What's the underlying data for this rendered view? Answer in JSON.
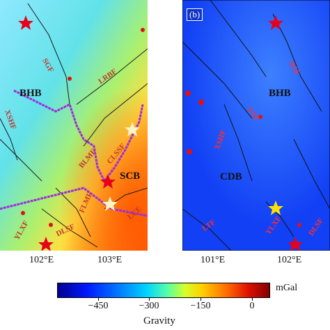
{
  "panel_a": {
    "labels": {
      "bhb": "BHB",
      "scb": "SCB",
      "sgf": "SGF",
      "lrbf": "LRBF",
      "blmf": "BLMF",
      "clssf": "CLSSF",
      "flmf": "FLMF",
      "ylxf": "YLXF",
      "dlsf": "DLSF",
      "xshf": "XSHF",
      "lce": "LCE"
    },
    "xticks": [
      "102°E",
      "103°E"
    ],
    "colors": {
      "background_start": "#7fe0ff",
      "background_end": "#ff7a12",
      "boundary": "#9b30d9",
      "fault": "#1a1a1a",
      "label": "#c0392b"
    }
  },
  "panel_b": {
    "tag": "(b)",
    "labels": {
      "bhb": "BHB",
      "cdb": "CDB",
      "sgf": "SGF",
      "yxf": "YXF",
      "xshf": "XSHF",
      "ltf": "LTF",
      "ylxf": "YLXF",
      "dlsf": "DLSF"
    },
    "xticks": [
      "101°E",
      "102°E"
    ],
    "colors": {
      "background": "#1a4fff",
      "fault": "#111111",
      "label": "#ff2d2d"
    }
  },
  "colorbar": {
    "ticks": [
      "−450",
      "−300",
      "−150",
      "0"
    ],
    "unit": "mGal",
    "title": "Gravity"
  }
}
